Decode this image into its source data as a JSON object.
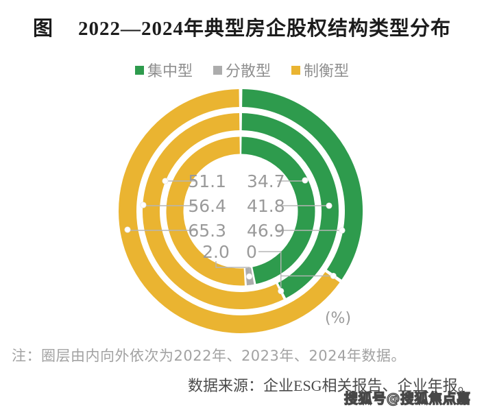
{
  "header": {
    "prefix": "图",
    "title": "2022—2024年典型房企股权结构类型分布"
  },
  "legend": {
    "items": [
      {
        "label": "集中型",
        "color": "#2E9B4D"
      },
      {
        "label": "分散型",
        "color": "#ACACAC"
      },
      {
        "label": "制衡型",
        "color": "#EAB431"
      }
    ]
  },
  "chart_data": {
    "type": "pie",
    "variant": "concentric-donut-3-rings",
    "title": "2022—2024年典型房企股权结构类型分布",
    "unit": "%",
    "unit_label": "(%)",
    "legend_position": "top",
    "categories": [
      "集中型",
      "分散型",
      "制衡型"
    ],
    "colors": {
      "集中型": "#2E9B4D",
      "分散型": "#ACACAC",
      "制衡型": "#EAB431"
    },
    "rings": [
      {
        "year": "2022年",
        "position": "inner",
        "values": {
          "集中型": 46.9,
          "分散型": 2.0,
          "制衡型": 51.1
        }
      },
      {
        "year": "2023年",
        "position": "middle",
        "values": {
          "集中型": 41.8,
          "分散型": 0,
          "制衡型": 56.4
        }
      },
      {
        "year": "2024年",
        "position": "outer",
        "values": {
          "集中型": 34.7,
          "分散型": 0,
          "制衡型": 65.3
        }
      }
    ],
    "displayed_labels": {
      "left_column_category": "制衡型",
      "right_column_category": "集中型",
      "bottom_row_category": "分散型",
      "rows": [
        [
          "51.1",
          "34.7"
        ],
        [
          "56.4",
          "41.8"
        ],
        [
          "65.3",
          "46.9"
        ],
        [
          "2.0",
          "0"
        ]
      ]
    }
  },
  "note": "注：圈层由内向外依次为2022年、2023年、2024年数据。",
  "source": "数据来源：企业ESG相关报告、企业年报。",
  "watermark": "搜狐号@搜狐焦点嘉峪关站"
}
